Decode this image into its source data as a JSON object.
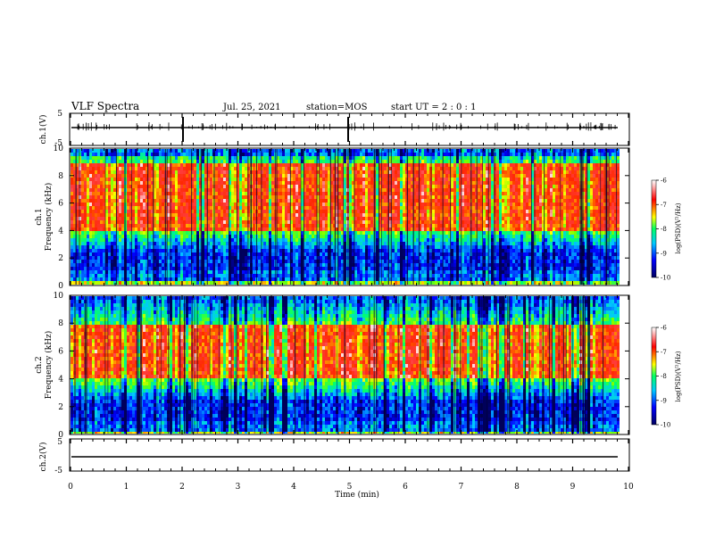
{
  "header": {
    "title": "VLF Spectra",
    "date": "Jul. 25, 2021",
    "station": "station=MOS",
    "start": "start UT =  2 : 0 : 1"
  },
  "chart_data": [
    {
      "type": "line",
      "panel": "ch1-waveform",
      "ylabel": "ch.1(V)",
      "ylim": [
        -5,
        5
      ],
      "yticks": [
        "5",
        "-5"
      ],
      "xlim": [
        0,
        10
      ],
      "series_baseline": -1.2
    },
    {
      "type": "heatmap",
      "panel": "ch1-spectrogram",
      "ylabel_line1": "ch.1",
      "ylabel_line2": "Frequency (kHz)",
      "ylim": [
        0,
        10
      ],
      "yticks": [
        "0",
        "2",
        "4",
        "6",
        "8",
        "10"
      ],
      "xlim": [
        0,
        10
      ],
      "intense_band_khz": [
        4,
        9
      ],
      "colorbar": {
        "range": [
          -10,
          -6
        ],
        "ticks": [
          "-6",
          "-7",
          "-8",
          "-9",
          "-10"
        ],
        "label": "log(PSD)(V²/Hz)"
      }
    },
    {
      "type": "heatmap",
      "panel": "ch2-spectrogram",
      "ylabel_line1": "ch.2",
      "ylabel_line2": "Frequency (kHz)",
      "ylim": [
        0,
        10
      ],
      "yticks": [
        "0",
        "2",
        "4",
        "6",
        "8",
        "10"
      ],
      "xlim": [
        0,
        10
      ],
      "intense_band_khz": [
        4,
        8
      ],
      "colorbar": {
        "range": [
          -10,
          -6
        ],
        "ticks": [
          "-6",
          "-7",
          "-8",
          "-9",
          "-10"
        ],
        "label": "log(PSD)(V²/Hz)"
      }
    },
    {
      "type": "line",
      "panel": "ch2-waveform",
      "ylabel": "ch.2(V)",
      "ylim": [
        -5,
        5
      ],
      "yticks": [
        "5",
        "-5"
      ],
      "xlim": [
        0,
        10
      ],
      "xlabel": "Time (min)",
      "xticks": [
        "0",
        "1",
        "2",
        "3",
        "4",
        "5",
        "6",
        "7",
        "8",
        "9",
        "10"
      ],
      "series_baseline": -1.2
    }
  ],
  "colors": {
    "colormap": [
      "#00006e",
      "#0000ff",
      "#00c8ff",
      "#00ff64",
      "#ffff00",
      "#ff0000",
      "#ffffff"
    ]
  }
}
